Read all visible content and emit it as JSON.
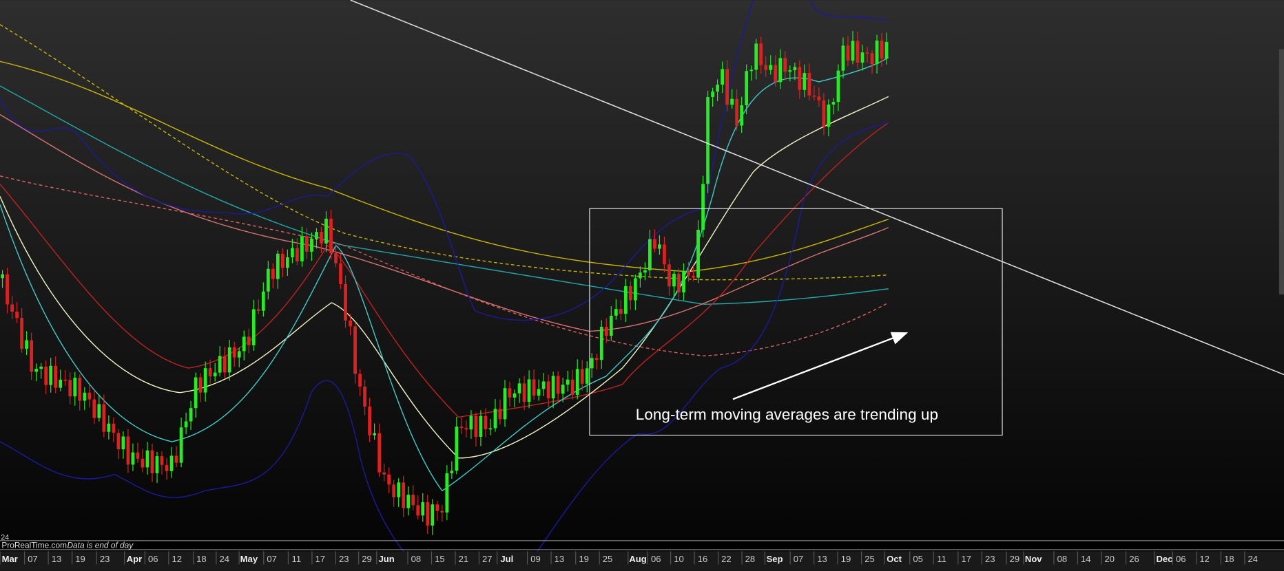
{
  "footer": {
    "site": "ProRealTime.com",
    "note": "Data is end of day",
    "corner": "24"
  },
  "annotation": {
    "text": "Long-term moving averages are trending up"
  },
  "x_axis": {
    "labels": [
      "Mar",
      "07",
      "13",
      "19",
      "23",
      "Apr",
      "06",
      "12",
      "18",
      "24",
      "May",
      "07",
      "11",
      "17",
      "23",
      "29",
      "Jun",
      "08",
      "15",
      "21",
      "27",
      "Jul",
      "09",
      "13",
      "19",
      "25",
      "Aug",
      "06",
      "10",
      "16",
      "22",
      "28",
      "Sep",
      "07",
      "13",
      "19",
      "25",
      "Oct",
      "05",
      "11",
      "17",
      "23",
      "29",
      "Nov",
      "08",
      "14",
      "20",
      "26",
      "Dec",
      "06",
      "12",
      "18",
      "24"
    ]
  }
}
